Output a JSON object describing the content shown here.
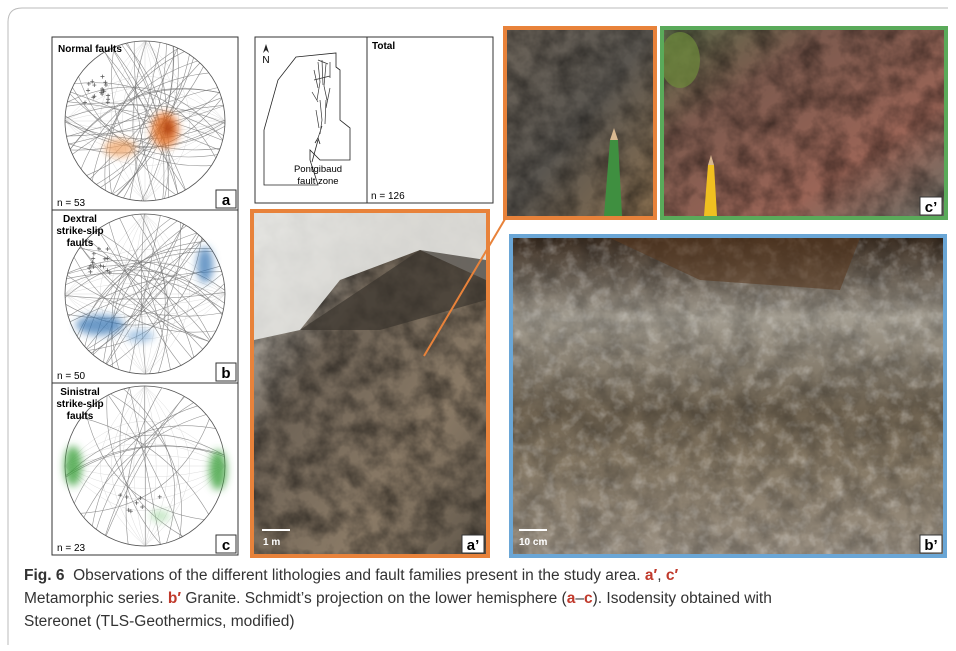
{
  "panels": {
    "a": {
      "title": [
        "Normal faults"
      ],
      "count": "n = 53",
      "letter": "a"
    },
    "b": {
      "title": [
        "Dextral",
        "strike-slip",
        "faults"
      ],
      "count": "n = 50",
      "letter": "b"
    },
    "c": {
      "title": [
        "Sinistral",
        "strike-slip",
        "faults"
      ],
      "count": "n = 23",
      "letter": "c"
    },
    "map": {
      "north": "N",
      "zone": [
        "Pontgibaud",
        "fault zone"
      ]
    },
    "total": {
      "title": "Total",
      "count": "n = 126"
    },
    "a_prime": {
      "scale": "1 m",
      "letter": "a’"
    },
    "b_prime": {
      "scale": "10 cm",
      "letter": "b’"
    },
    "c_prime": {
      "letter": "c’"
    }
  },
  "caption": [
    [
      {
        "text": "Fig. 6",
        "bold": true
      },
      {
        "text": "  Observations of the different lithologies and fault families present in the study area. ",
        "bold": false
      },
      {
        "text": "a′",
        "bold": true
      },
      {
        "text": ", ",
        "bold": false
      },
      {
        "text": "c′",
        "bold": true
      }
    ],
    [
      {
        "text": "Metamorphic series. ",
        "bold": false
      },
      {
        "text": "b′",
        "bold": true
      },
      {
        "text": " Granite. Schmidt’s projection on the lower hemisphere (",
        "bold": false
      },
      {
        "text": "a",
        "bold": true
      },
      {
        "text": "–",
        "bold": false
      },
      {
        "text": "c",
        "bold": true
      },
      {
        "text": "). Isodensity obtained with",
        "bold": false
      }
    ],
    [
      {
        "text": "Stereonet (TLS-Geothermics, modified)",
        "bold": false
      }
    ]
  ]
}
